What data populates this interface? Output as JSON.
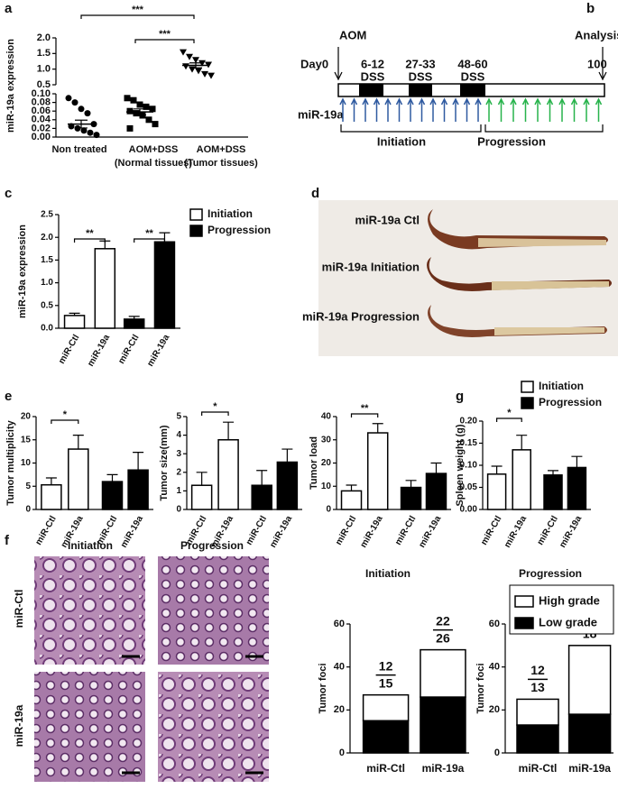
{
  "chart_data": [
    {
      "type": "dot",
      "panel": "a",
      "ylabel": "miR-19a expression",
      "color": "#000000",
      "categories": [
        "Non treated",
        "AOM+DSS",
        "AOM+DSS"
      ],
      "subcategories": [
        null,
        "(Normal tissues)",
        "(Tumor tissues)"
      ],
      "groups": [
        {
          "values": [
            0.09,
            0.08,
            0.065,
            0.055,
            0.03,
            0.025,
            0.02,
            0.015,
            0.01,
            0.005
          ]
        },
        {
          "values": [
            0.09,
            0.085,
            0.075,
            0.07,
            0.065,
            0.06,
            0.055,
            0.05,
            0.04,
            0.03,
            0.02
          ]
        },
        {
          "values": [
            1.55,
            1.4,
            1.3,
            1.2,
            1.15,
            1.1,
            1.0,
            0.95,
            0.85,
            0.8
          ]
        }
      ],
      "means": [
        0.03,
        0.058,
        1.12
      ],
      "sem": [
        0.009,
        0.007,
        0.08
      ],
      "ylim": [
        0,
        0.1
      ],
      "yticks": [
        {
          "value": 0,
          "label": "0.00"
        },
        0.02,
        0.04,
        0.06,
        0.08,
        {
          "value": 0.1,
          "label": "0.10"
        }
      ],
      "ylim_upper": [
        0.5,
        2.0
      ],
      "yticks_upper": [
        0.5,
        {
          "value": 1,
          "label": "1.0"
        },
        1.5,
        {
          "value": 2,
          "label": "2.0"
        }
      ],
      "annotations": [
        "***",
        "***"
      ]
    },
    {
      "type": "bar",
      "panel": "c",
      "ylabel": "miR-19a expression",
      "legend": true,
      "categories": [
        "miR-Ctl",
        "miR-19a",
        "miR-Ctl",
        "miR-19a"
      ],
      "series": [
        {
          "name": "Initiation",
          "color": "#ffffff",
          "values": [
            0.28,
            1.75,
            null,
            null
          ],
          "errors": [
            0.05,
            0.17,
            null,
            null
          ]
        },
        {
          "name": "Progression",
          "color": "#000000",
          "values": [
            null,
            null,
            0.2,
            1.9
          ],
          "errors": [
            null,
            null,
            0.06,
            0.2
          ]
        }
      ],
      "ylim": [
        0,
        2.5
      ],
      "yticks": [
        {
          "value": 0,
          "label": "0.0"
        },
        0.5,
        {
          "value": 1,
          "label": "1.0"
        },
        1.5,
        {
          "value": 2,
          "label": "2.0"
        },
        2.5
      ],
      "annotations": [
        "**",
        "**"
      ]
    },
    {
      "type": "bar",
      "panel": "e",
      "ylabel": "Tumor multiplicity",
      "legend": false,
      "categories": [
        "miR-Ctl",
        "miR-19a",
        "miR-Ctl",
        "miR-19a"
      ],
      "series": [
        {
          "name": "Initiation",
          "color": "#ffffff",
          "values": [
            5.3,
            13,
            null,
            null
          ],
          "errors": [
            1.5,
            3,
            null,
            null
          ]
        },
        {
          "name": "Progression",
          "color": "#000000",
          "values": [
            null,
            null,
            6,
            8.5
          ],
          "errors": [
            null,
            null,
            1.5,
            3.8
          ]
        }
      ],
      "ylim": [
        0,
        20
      ],
      "yticks": [
        0,
        5,
        10,
        15,
        20
      ],
      "annotations": [
        "*"
      ]
    },
    {
      "type": "bar",
      "ylabel": "Tumor size(mm)",
      "legend": false,
      "categories": [
        "miR-Ctl",
        "miR-19a",
        "miR-Ctl",
        "miR-19a"
      ],
      "series": [
        {
          "name": "Initiation",
          "color": "#ffffff",
          "values": [
            1.3,
            3.75,
            null,
            null
          ],
          "errors": [
            0.7,
            0.95,
            null,
            null
          ]
        },
        {
          "name": "Progression",
          "color": "#000000",
          "values": [
            null,
            null,
            1.3,
            2.55
          ],
          "errors": [
            null,
            null,
            0.8,
            0.7
          ]
        }
      ],
      "ylim": [
        0,
        5
      ],
      "yticks": [
        0,
        1,
        2,
        3,
        4,
        5
      ],
      "annotations": [
        "*"
      ]
    },
    {
      "type": "bar",
      "ylabel": "Tumor load",
      "legend": false,
      "categories": [
        "miR-Ctl",
        "miR-19a",
        "miR-Ctl",
        "miR-19a"
      ],
      "series": [
        {
          "name": "Initiation",
          "color": "#ffffff",
          "values": [
            8,
            33,
            null,
            null
          ],
          "errors": [
            2.5,
            4,
            null,
            null
          ]
        },
        {
          "name": "Progression",
          "color": "#000000",
          "values": [
            null,
            null,
            9.5,
            15.5
          ],
          "errors": [
            null,
            null,
            3,
            4.5
          ]
        }
      ],
      "ylim": [
        0,
        40
      ],
      "yticks": [
        0,
        10,
        20,
        30,
        40
      ],
      "annotations": [
        "**"
      ]
    },
    {
      "type": "bar",
      "panel": "g",
      "ylabel": "Spleen weight (g)",
      "legend": true,
      "categories": [
        "miR-Ctl",
        "miR-19a",
        "miR-Ctl",
        "miR-19a"
      ],
      "series": [
        {
          "name": "Initiation",
          "color": "#ffffff",
          "values": [
            0.08,
            0.135,
            null,
            null
          ],
          "errors": [
            0.018,
            0.033,
            null,
            null
          ]
        },
        {
          "name": "Progression",
          "color": "#000000",
          "values": [
            null,
            null,
            0.078,
            0.095
          ],
          "errors": [
            null,
            null,
            0.01,
            0.025
          ]
        }
      ],
      "ylim": [
        0,
        0.2
      ],
      "yticks": [
        {
          "value": 0,
          "label": "0.00"
        },
        0.05,
        {
          "value": 0.1,
          "label": "0.10"
        },
        0.15,
        {
          "value": 0.2,
          "label": "0.20"
        }
      ],
      "annotations": [
        "*"
      ]
    },
    {
      "type": "stacked_bar",
      "title": "Initiation",
      "ylabel": "Tumor foci",
      "legend": false,
      "categories": [
        "miR-Ctl",
        "miR-19a"
      ],
      "series": [
        {
          "name": "Low grade",
          "color": "#000000",
          "values": [
            15,
            26
          ]
        },
        {
          "name": "High grade",
          "color": "#ffffff",
          "values": [
            12,
            22
          ]
        }
      ],
      "ylim": [
        0,
        60
      ],
      "yticks": [
        0,
        20,
        40,
        60
      ]
    },
    {
      "type": "stacked_bar",
      "title": "Progression",
      "ylabel": "Tumor foci",
      "legend": true,
      "categories": [
        "miR-Ctl",
        "miR-19a"
      ],
      "series": [
        {
          "name": "Low grade",
          "color": "#000000",
          "values": [
            13,
            18
          ]
        },
        {
          "name": "High grade",
          "color": "#ffffff",
          "values": [
            12,
            32
          ]
        }
      ],
      "ylim": [
        0,
        60
      ],
      "yticks": [
        0,
        20,
        40,
        60
      ]
    }
  ],
  "diagram": {
    "panel": "b",
    "aom": "AOM",
    "day0": "Day0",
    "analysis": "Analysis",
    "day_end": "100",
    "mirna": "miR-19a",
    "initiation": "Initiation",
    "progression": "Progression",
    "dss": [
      {
        "days": "6-12",
        "label": "DSS"
      },
      {
        "days": "27-33",
        "label": "DSS"
      },
      {
        "days": "48-60",
        "label": "DSS"
      }
    ]
  },
  "photo": {
    "panel": "d",
    "labels": [
      "miR-19a Ctl",
      "miR-19a Initiation",
      "miR-19a Progression"
    ]
  },
  "histology": {
    "panel": "f",
    "columns": [
      "Initiation",
      "Progression"
    ],
    "rows": [
      "miR-Ctl",
      "miR-19a"
    ]
  }
}
